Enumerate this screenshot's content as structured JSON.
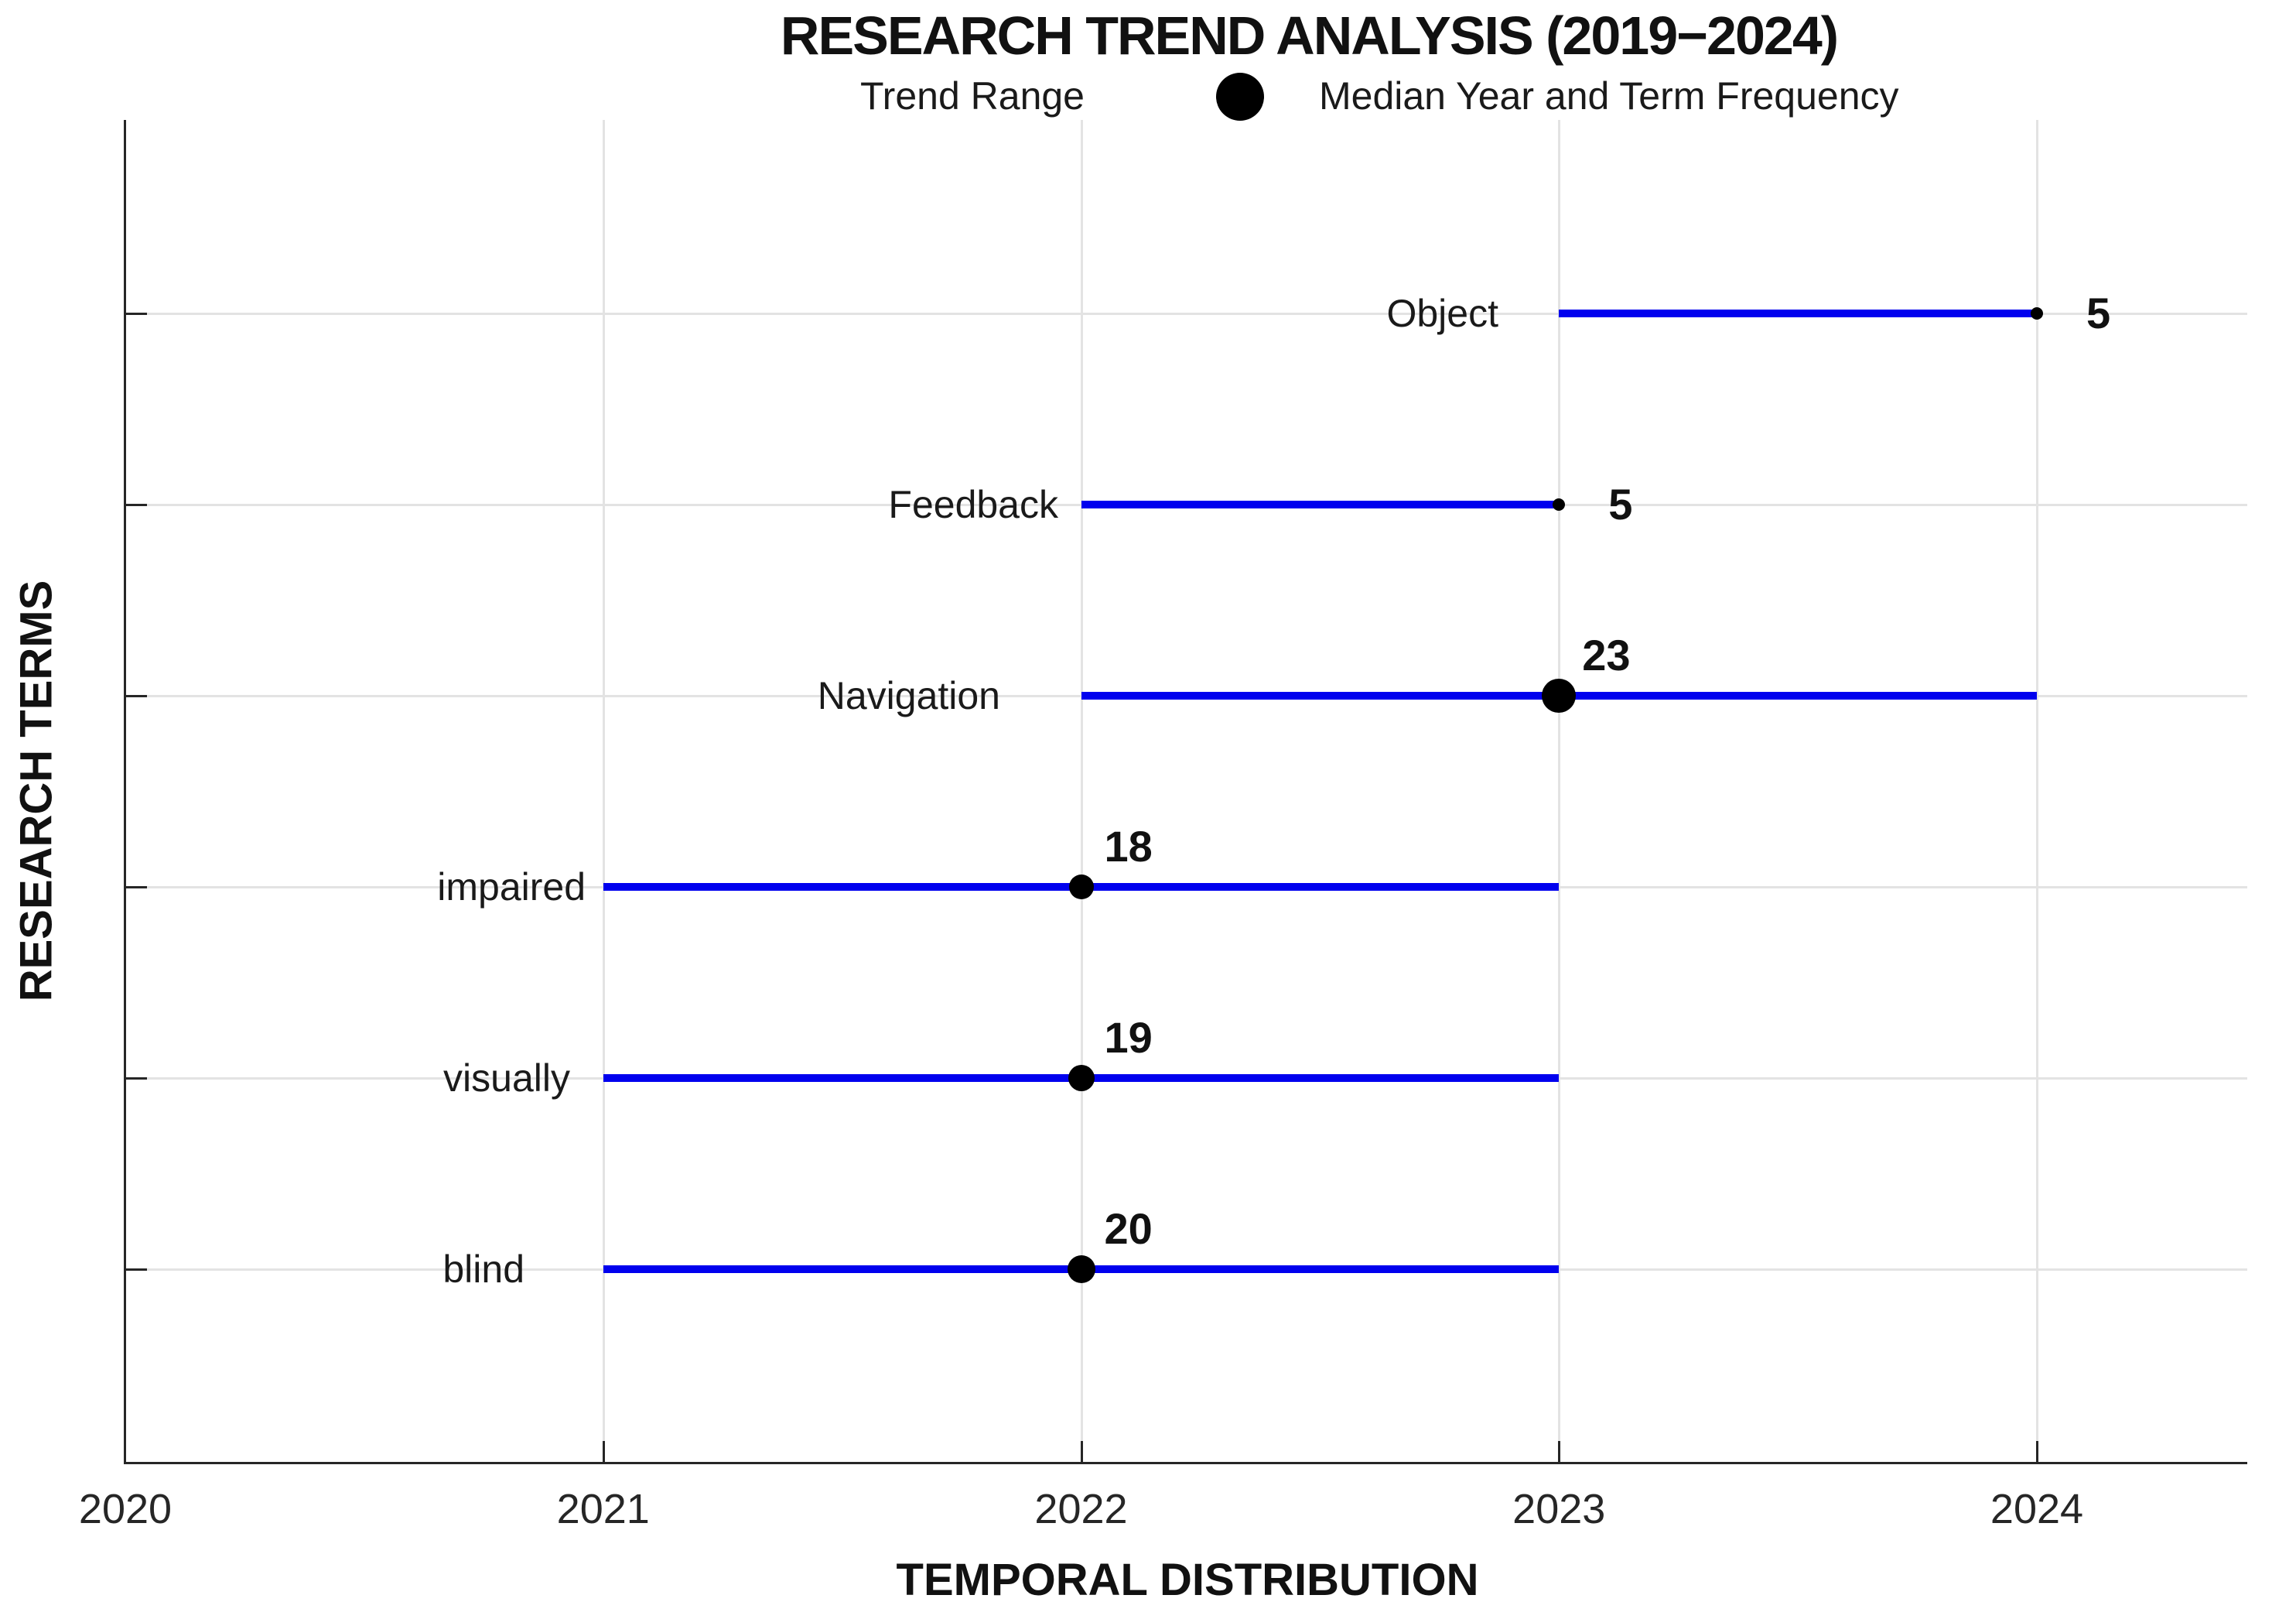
{
  "title": "RESEARCH TREND ANALYSIS (2019−2024)",
  "legend": {
    "trend_range_label": "Trend Range",
    "median_label": "Median Year and Term Frequency"
  },
  "axes": {
    "x_label": "TEMPORAL DISTRIBUTION",
    "y_label": "RESEARCH TERMS",
    "x_ticks": [
      "2020",
      "2021",
      "2022",
      "2023",
      "2024"
    ]
  },
  "colors": {
    "trend_line": "#0000ee",
    "marker": "#000000",
    "axis": "#262626",
    "grid": "#e3e3e3",
    "text": "#1a1a1a"
  },
  "chart_data": {
    "type": "scatter",
    "subtype": "range-dot-timeline",
    "title": "RESEARCH TREND ANALYSIS (2019−2024)",
    "xlabel": "TEMPORAL DISTRIBUTION",
    "ylabel": "RESEARCH TERMS",
    "x_range": [
      2020,
      2024.44
    ],
    "grid": true,
    "legend_position": "top",
    "terms": [
      {
        "term": "Object",
        "start": 2023,
        "end": 2024,
        "median": 2024,
        "frequency": 5
      },
      {
        "term": "Feedback",
        "start": 2022,
        "end": 2023,
        "median": 2023,
        "frequency": 5
      },
      {
        "term": "Navigation",
        "start": 2022,
        "end": 2024,
        "median": 2023,
        "frequency": 23
      },
      {
        "term": "impaired",
        "start": 2021,
        "end": 2023,
        "median": 2022,
        "frequency": 18
      },
      {
        "term": "visually",
        "start": 2021,
        "end": 2023,
        "median": 2022,
        "frequency": 19
      },
      {
        "term": "blind",
        "start": 2021,
        "end": 2023,
        "median": 2022,
        "frequency": 20
      }
    ]
  }
}
